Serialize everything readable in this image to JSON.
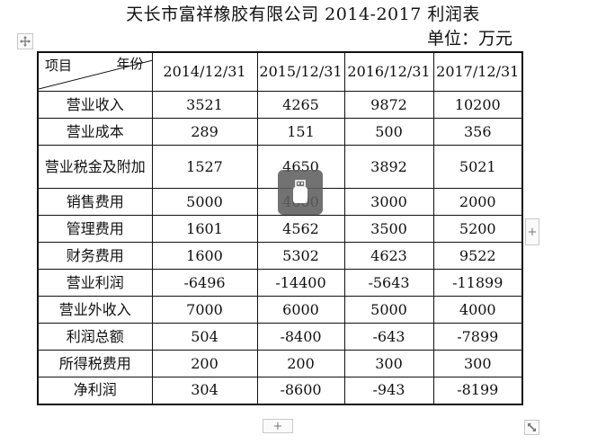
{
  "title": "天长市富祥橡胶有限公司 2014-2017 利润表",
  "unit": "单位：万元",
  "table": {
    "header": {
      "item_label": "项目",
      "year_label": "年份",
      "years": [
        "2014/12/31",
        "2015/12/31",
        "2016/12/31",
        "2017/12/31"
      ]
    },
    "rows": [
      {
        "label": "营业收入",
        "values": [
          "3521",
          "4265",
          "9872",
          "10200"
        ]
      },
      {
        "label": "营业成本",
        "values": [
          "289",
          "151",
          "500",
          "356"
        ]
      },
      {
        "label": "营业税金及附加",
        "values": [
          "1527",
          "4650",
          "3892",
          "5021"
        ]
      },
      {
        "label": "销售费用",
        "values": [
          "5000",
          "4000",
          "3000",
          "2000"
        ]
      },
      {
        "label": "管理费用",
        "values": [
          "1601",
          "4562",
          "3500",
          "5200"
        ]
      },
      {
        "label": "财务费用",
        "values": [
          "1600",
          "5302",
          "4623",
          "9522"
        ]
      },
      {
        "label": "营业利润",
        "values": [
          "-6496",
          "-14400",
          "-5643",
          "-11899"
        ]
      },
      {
        "label": "营业外收入",
        "values": [
          "7000",
          "6000",
          "5000",
          "4000"
        ]
      },
      {
        "label": "利润总额",
        "values": [
          "504",
          "-8400",
          "-643",
          "-7899"
        ]
      },
      {
        "label": "所得税费用",
        "values": [
          "200",
          "200",
          "300",
          "300"
        ]
      },
      {
        "label": "净利润",
        "values": [
          "304",
          "-8600",
          "-943",
          "-8199"
        ]
      }
    ]
  },
  "controls": {
    "move_icon": "move-icon",
    "add_column_symbol": "+",
    "add_row_symbol": "+",
    "resize_icon": "resize-diagonal-icon",
    "overlay_icon": "usb-drive-icon"
  },
  "colors": {
    "border": "#111111",
    "overlay": "#5f5f5f"
  }
}
